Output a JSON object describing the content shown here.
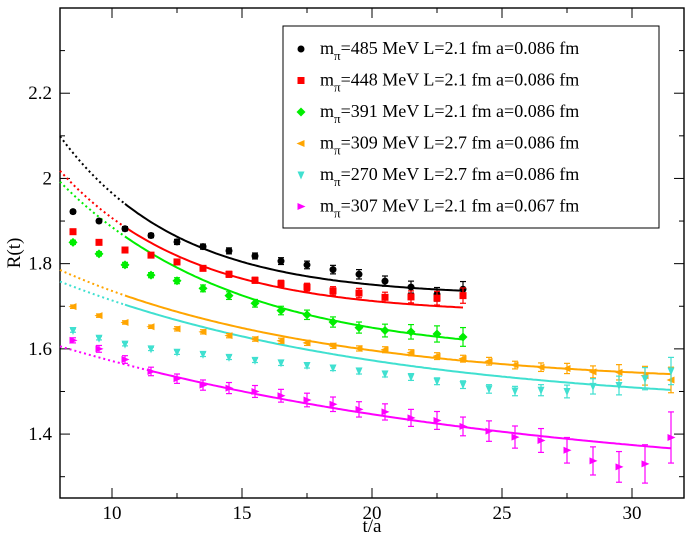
{
  "chart_data": {
    "type": "scatter",
    "title": "",
    "xlabel": "t/a",
    "ylabel": "R(t)",
    "xlim": [
      8,
      32
    ],
    "ylim": [
      1.25,
      2.4
    ],
    "xticks": [
      10,
      15,
      20,
      25,
      30
    ],
    "yticks": [
      1.4,
      1.6,
      1.8,
      2.0,
      2.2
    ],
    "ytick_labels": [
      "1.4",
      "1.6",
      "1.8",
      "2",
      "2.2"
    ],
    "legend_position": "top-right",
    "series": [
      {
        "name": "mπ=485 MeV L=2.1 fm a=0.086 fm",
        "legend": {
          "pre": "m",
          "sub": "π",
          "post": "=485 MeV L=2.1 fm a=0.086 fm"
        },
        "color": "#000000",
        "marker": "circle",
        "x": [
          8.5,
          9.5,
          10.5,
          11.5,
          12.5,
          13.5,
          14.5,
          15.5,
          16.5,
          17.5,
          18.5,
          19.5,
          20.5,
          21.5,
          22.5,
          23.5
        ],
        "y": [
          1.922,
          1.9,
          1.882,
          1.866,
          1.851,
          1.84,
          1.83,
          1.818,
          1.806,
          1.797,
          1.786,
          1.775,
          1.759,
          1.745,
          1.728,
          1.74
        ],
        "err": [
          0.004,
          0.004,
          0.005,
          0.005,
          0.006,
          0.006,
          0.007,
          0.007,
          0.008,
          0.009,
          0.01,
          0.011,
          0.012,
          0.014,
          0.016,
          0.018
        ],
        "fit_x": [
          10.5,
          23.5
        ],
        "fit_a": 1.724,
        "fit_b": 0.375,
        "fit_c": 0.22
      },
      {
        "name": "mπ=448 MeV L=2.1 fm a=0.086 fm",
        "legend": {
          "pre": "m",
          "sub": "π",
          "post": "=448 MeV L=2.1 fm a=0.086 fm"
        },
        "color": "#ff0000",
        "marker": "square",
        "x": [
          8.5,
          9.5,
          10.5,
          11.5,
          12.5,
          13.5,
          14.5,
          15.5,
          16.5,
          17.5,
          18.5,
          19.5,
          20.5,
          21.5,
          22.5,
          23.5
        ],
        "y": [
          1.875,
          1.85,
          1.832,
          1.82,
          1.804,
          1.789,
          1.775,
          1.761,
          1.753,
          1.745,
          1.736,
          1.731,
          1.721,
          1.722,
          1.719,
          1.725
        ],
        "err": [
          0.004,
          0.004,
          0.005,
          0.005,
          0.006,
          0.006,
          0.007,
          0.007,
          0.008,
          0.009,
          0.01,
          0.011,
          0.012,
          0.014,
          0.016,
          0.018
        ],
        "fit_x": [
          10.5,
          23.5
        ],
        "fit_a": 1.682,
        "fit_b": 0.336,
        "fit_c": 0.2
      },
      {
        "name": "mπ=391 MeV L=2.1 fm a=0.086 fm",
        "legend": {
          "pre": "m",
          "sub": "π",
          "post": "=391 MeV L=2.1 fm a=0.086 fm"
        },
        "color": "#00ee00",
        "marker": "diamond",
        "x": [
          8.5,
          9.5,
          10.5,
          11.5,
          12.5,
          13.5,
          14.5,
          15.5,
          16.5,
          17.5,
          18.5,
          19.5,
          20.5,
          21.5,
          22.5,
          23.5
        ],
        "y": [
          1.85,
          1.823,
          1.797,
          1.773,
          1.76,
          1.742,
          1.725,
          1.707,
          1.69,
          1.68,
          1.663,
          1.65,
          1.643,
          1.64,
          1.635,
          1.628
        ],
        "err": [
          0.005,
          0.005,
          0.006,
          0.006,
          0.007,
          0.008,
          0.009,
          0.009,
          0.01,
          0.011,
          0.012,
          0.013,
          0.015,
          0.017,
          0.019,
          0.022
        ],
        "fit_x": [
          10.5,
          23.5
        ],
        "fit_a": 1.582,
        "fit_b": 0.41,
        "fit_c": 0.15
      },
      {
        "name": "mπ=309 MeV L=2.7 fm a=0.086 fm",
        "legend": {
          "pre": "m",
          "sub": "π",
          "post": "=309 MeV L=2.7 fm a=0.086 fm"
        },
        "color": "#ffa500",
        "marker": "triangle-left",
        "x": [
          8.5,
          9.5,
          10.5,
          11.5,
          12.5,
          13.5,
          14.5,
          15.5,
          16.5,
          17.5,
          18.5,
          19.5,
          20.5,
          21.5,
          22.5,
          23.5,
          24.5,
          25.5,
          26.5,
          27.5,
          28.5,
          29.5,
          30.5,
          31.5
        ],
        "y": [
          1.699,
          1.678,
          1.662,
          1.652,
          1.647,
          1.64,
          1.631,
          1.623,
          1.619,
          1.614,
          1.607,
          1.601,
          1.598,
          1.591,
          1.583,
          1.577,
          1.571,
          1.562,
          1.557,
          1.554,
          1.546,
          1.545,
          1.537,
          1.527
        ],
        "err": [
          0.004,
          0.004,
          0.004,
          0.004,
          0.005,
          0.005,
          0.005,
          0.005,
          0.006,
          0.006,
          0.006,
          0.006,
          0.007,
          0.007,
          0.008,
          0.008,
          0.009,
          0.009,
          0.01,
          0.012,
          0.014,
          0.018,
          0.022,
          0.03
        ],
        "fit_x": [
          10.5,
          31.5
        ],
        "fit_a": 1.515,
        "fit_b": 0.27,
        "fit_c": 0.1
      },
      {
        "name": "mπ=270 MeV L=2.7 fm a=0.086 fm",
        "legend": {
          "pre": "m",
          "sub": "π",
          "post": "=270 MeV L=2.7 fm a=0.086 fm"
        },
        "color": "#40e0d0",
        "marker": "triangle-down",
        "x": [
          8.5,
          9.5,
          10.5,
          11.5,
          12.5,
          13.5,
          14.5,
          15.5,
          16.5,
          17.5,
          18.5,
          19.5,
          20.5,
          21.5,
          22.5,
          23.5,
          24.5,
          25.5,
          26.5,
          27.5,
          28.5,
          29.5,
          30.5,
          31.5
        ],
        "y": [
          1.643,
          1.625,
          1.611,
          1.6,
          1.592,
          1.587,
          1.58,
          1.573,
          1.567,
          1.561,
          1.555,
          1.548,
          1.541,
          1.534,
          1.524,
          1.516,
          1.506,
          1.501,
          1.503,
          1.5,
          1.512,
          1.514,
          1.53,
          1.548
        ],
        "err": [
          0.004,
          0.004,
          0.004,
          0.004,
          0.005,
          0.005,
          0.005,
          0.005,
          0.006,
          0.006,
          0.006,
          0.007,
          0.007,
          0.008,
          0.008,
          0.009,
          0.01,
          0.011,
          0.013,
          0.015,
          0.018,
          0.022,
          0.026,
          0.032
        ],
        "fit_x": [
          10.5,
          31.5
        ],
        "fit_a": 1.458,
        "fit_b": 0.3,
        "fit_c": 0.08
      },
      {
        "name": "mπ=307 MeV L=2.1 fm a=0.067 fm",
        "legend": {
          "pre": "m",
          "sub": "π",
          "post": "=307 MeV L=2.1 fm a=0.067 fm"
        },
        "color": "#ff00ff",
        "marker": "triangle-right",
        "x": [
          8.5,
          9.5,
          10.5,
          11.5,
          12.5,
          13.5,
          14.5,
          15.5,
          16.5,
          17.5,
          18.5,
          19.5,
          20.5,
          21.5,
          22.5,
          23.5,
          24.5,
          25.5,
          26.5,
          27.5,
          28.5,
          29.5,
          30.5,
          31.5
        ],
        "y": [
          1.62,
          1.6,
          1.575,
          1.547,
          1.53,
          1.515,
          1.508,
          1.5,
          1.49,
          1.48,
          1.47,
          1.458,
          1.452,
          1.438,
          1.432,
          1.418,
          1.407,
          1.393,
          1.385,
          1.362,
          1.337,
          1.323,
          1.33,
          1.392
        ],
        "err": [
          0.006,
          0.008,
          0.009,
          0.01,
          0.011,
          0.012,
          0.013,
          0.014,
          0.015,
          0.016,
          0.017,
          0.018,
          0.019,
          0.02,
          0.021,
          0.022,
          0.024,
          0.026,
          0.028,
          0.03,
          0.033,
          0.036,
          0.045,
          0.06
        ],
        "fit_x": [
          11.5,
          31.5
        ],
        "fit_a": 1.276,
        "fit_b": 0.33,
        "fit_c": 0.055
      }
    ]
  }
}
